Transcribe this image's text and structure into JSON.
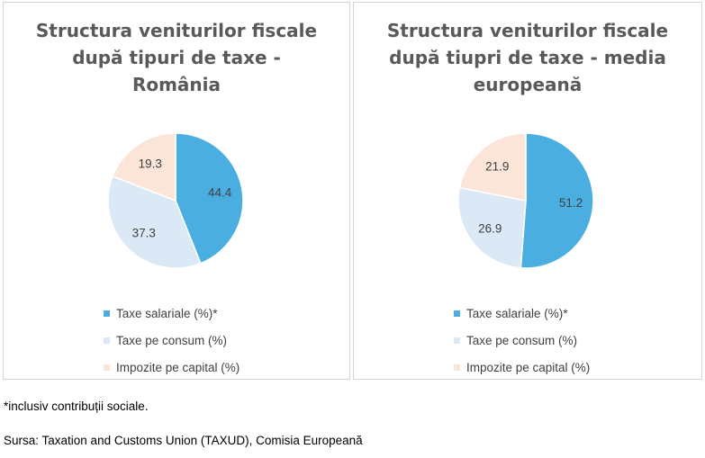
{
  "colors": {
    "salariale": "#4aaee0",
    "consum": "#dbe8f6",
    "capital": "#fbe4d8",
    "label_text": "#404040"
  },
  "chart_data": [
    {
      "type": "pie",
      "title": "Structura veniturilor fiscale după tipuri de taxe - România",
      "title_lines": [
        "Structura veniturilor fiscale",
        "după tipuri de taxe -",
        "România"
      ],
      "categories": [
        "Taxe salariale (%)*",
        "Taxe pe consum (%)",
        "Impozite pe capital (%)"
      ],
      "values": [
        44.4,
        37.3,
        19.3
      ],
      "value_labels": [
        "44.4",
        "37.3",
        "19.3"
      ],
      "legend_position": "bottom"
    },
    {
      "type": "pie",
      "title": "Structura veniturilor fiscale după tiupri de taxe - media europeană",
      "title_lines": [
        "Structura veniturilor fiscale",
        "după tiupri de taxe - media",
        "europeană"
      ],
      "categories": [
        "Taxe salariale (%)*",
        "Taxe pe consum (%)",
        "Impozite pe capital (%)"
      ],
      "values": [
        51.2,
        26.9,
        21.9
      ],
      "value_labels": [
        "51.2",
        "26.9",
        "21.9"
      ],
      "legend_position": "bottom"
    }
  ],
  "footnotes": {
    "note": "*inclusiv contribuții sociale.",
    "source": "Sursa: Taxation and Customs Union (TAXUD), Comisia Europeană"
  }
}
